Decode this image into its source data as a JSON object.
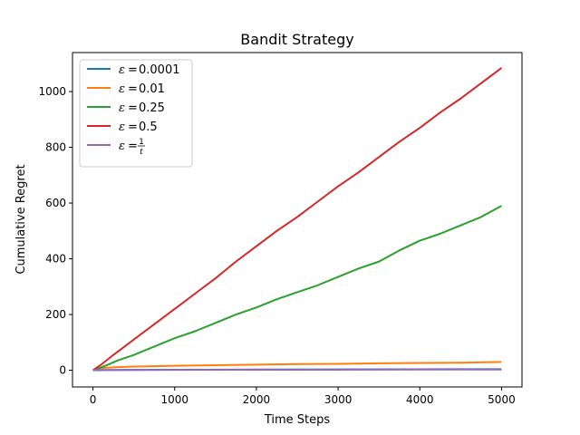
{
  "chart_data": {
    "type": "line",
    "title": "Bandit Strategy",
    "xlabel": "Time Steps",
    "ylabel": "Cumulative Regret",
    "xlim": [
      -250,
      5250
    ],
    "ylim": [
      -60,
      1140
    ],
    "xticks": [
      0,
      1000,
      2000,
      3000,
      4000,
      5000
    ],
    "yticks": [
      0,
      200,
      400,
      600,
      800,
      1000
    ],
    "grid": false,
    "legend_position": "top-left",
    "series": [
      {
        "name": "ε = 0.0001",
        "legend_symbol": "ε",
        "legend_value": "0.0001",
        "color": "#1f77b4",
        "x": [
          0,
          250,
          500,
          1000,
          2000,
          3000,
          4000,
          5000
        ],
        "y": [
          0,
          1,
          1.5,
          2,
          2.5,
          3,
          3.5,
          4
        ]
      },
      {
        "name": "ε = 0.01",
        "legend_symbol": "ε",
        "legend_value": "0.01",
        "color": "#ff7f0e",
        "x": [
          0,
          100,
          300,
          500,
          1000,
          1500,
          2000,
          2500,
          3000,
          3500,
          4000,
          4500,
          5000
        ],
        "y": [
          0,
          8,
          11,
          13,
          16,
          18,
          20,
          22,
          23,
          25,
          26,
          27,
          30
        ]
      },
      {
        "name": "ε = 0.25",
        "legend_symbol": "ε",
        "legend_value": "0.25",
        "color": "#2ca02c",
        "x": [
          0,
          100,
          200,
          300,
          500,
          750,
          1000,
          1250,
          1500,
          1750,
          2000,
          2250,
          2500,
          2750,
          3000,
          3250,
          3500,
          3750,
          4000,
          4250,
          4500,
          4750,
          5000
        ],
        "y": [
          0,
          10,
          22,
          35,
          55,
          85,
          115,
          140,
          170,
          200,
          225,
          255,
          280,
          305,
          335,
          365,
          390,
          430,
          465,
          490,
          520,
          550,
          590
        ]
      },
      {
        "name": "ε = 0.5",
        "legend_symbol": "ε",
        "legend_value": "0.5",
        "color": "#d62728",
        "x": [
          0,
          100,
          250,
          500,
          750,
          1000,
          1250,
          1500,
          1750,
          2000,
          2250,
          2500,
          2750,
          3000,
          3250,
          3500,
          3750,
          4000,
          4250,
          4500,
          4750,
          5000
        ],
        "y": [
          0,
          20,
          55,
          110,
          165,
          220,
          275,
          330,
          390,
          445,
          500,
          550,
          605,
          660,
          710,
          765,
          820,
          870,
          925,
          975,
          1030,
          1085
        ]
      },
      {
        "name": "ε = 1/t",
        "legend_symbol": "ε",
        "legend_num": "1",
        "legend_den": "t",
        "color": "#9467bd",
        "x": [
          0,
          1000,
          2000,
          3000,
          4000,
          5000
        ],
        "y": [
          1,
          1.5,
          2,
          2,
          2.5,
          2.5
        ]
      }
    ]
  }
}
